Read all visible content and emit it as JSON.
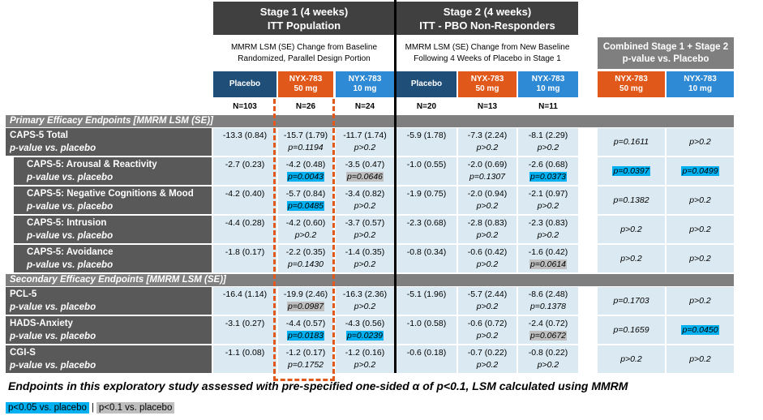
{
  "stages": [
    {
      "title": "Stage 1 (4 weeks)",
      "subtitle": "ITT Population",
      "note": [
        "MMRM LSM (SE) Change from Baseline",
        "Randomized, Parallel Design Portion"
      ],
      "arms": [
        {
          "name": "Placebo",
          "color": "#1f4e79"
        },
        {
          "name": "NYX-783",
          "dose": "50 mg",
          "color": "#e0581a"
        },
        {
          "name": "NYX-783",
          "dose": "10 mg",
          "color": "#2e8ad4"
        }
      ],
      "n": [
        "N=103",
        "N=26",
        "N=24"
      ]
    },
    {
      "title": "Stage 2 (4 weeks)",
      "subtitle": "ITT - PBO Non-Responders",
      "note": [
        "MMRM LSM (SE) Change from New Baseline",
        "Following 4 Weeks of Placebo in Stage 1"
      ],
      "arms": [
        {
          "name": "Placebo",
          "color": "#1f4e79"
        },
        {
          "name": "NYX-783",
          "dose": "50 mg",
          "color": "#e0581a"
        },
        {
          "name": "NYX-783",
          "dose": "10 mg",
          "color": "#2e8ad4"
        }
      ],
      "n": [
        "N=20",
        "N=13",
        "N=11"
      ]
    }
  ],
  "combined": {
    "title": "Combined Stage 1 + Stage 2",
    "subtitle": "p-value vs. Placebo",
    "arms": [
      {
        "name": "NYX-783",
        "dose": "50 mg",
        "color": "#e0581a"
      },
      {
        "name": "NYX-783",
        "dose": "10 mg",
        "color": "#2e8ad4"
      }
    ]
  },
  "sections": [
    {
      "title": "Primary Efficacy Endpoints [MMRM LSM (SE)]",
      "rows": [
        {
          "label": "CAPS-5 Total",
          "sub": "p-value vs. placebo",
          "indent": false,
          "cells": [
            {
              "value": "-13.3 (0.84)"
            },
            {
              "value": "-15.7 (1.79)",
              "p": "p=0.1194"
            },
            {
              "value": "-11.7 (1.74)",
              "p": "p>0.2"
            },
            {
              "value": "-5.9 (1.78)"
            },
            {
              "value": "-7.3 (2.24)",
              "p": "p>0.2"
            },
            {
              "value": "-8.1 (2.29)",
              "p": "p>0.2"
            }
          ],
          "combined": [
            {
              "p": "p=0.1611"
            },
            {
              "p": "p>0.2"
            }
          ]
        },
        {
          "label": "CAPS-5: Arousal & Reactivity",
          "sub": "p-value vs. placebo",
          "indent": true,
          "cells": [
            {
              "value": "-2.7 (0.23)"
            },
            {
              "value": "-4.2 (0.48)",
              "p": "p=0.0043",
              "hl": "#00b0f0"
            },
            {
              "value": "-3.5 (0.47)",
              "p": "p=0.0646",
              "hl": "#bfbfbf"
            },
            {
              "value": "-1.0 (0.55)"
            },
            {
              "value": "-2.0 (0.69)",
              "p": "p=0.1307"
            },
            {
              "value": "-2.6 (0.68)",
              "p": "p=0.0373",
              "hl": "#00b0f0"
            }
          ],
          "combined": [
            {
              "p": "p=0.0397",
              "hl": "#00b0f0"
            },
            {
              "p": "p=0.0499",
              "hl": "#00b0f0"
            }
          ]
        },
        {
          "label": "CAPS-5: Negative Cognitions & Mood",
          "sub": "p-value vs. placebo",
          "indent": true,
          "cells": [
            {
              "value": "-4.2 (0.40)"
            },
            {
              "value": "-5.7 (0.84)",
              "p": "p=0.0485",
              "hl": "#00b0f0"
            },
            {
              "value": "-3.4 (0.82)",
              "p": "p>0.2"
            },
            {
              "value": "-1.9 (0.75)"
            },
            {
              "value": "-2.0 (0.94)",
              "p": "p>0.2"
            },
            {
              "value": "-2.1 (0.97)",
              "p": "p>0.2"
            }
          ],
          "combined": [
            {
              "p": "p=0.1382"
            },
            {
              "p": "p>0.2"
            }
          ]
        },
        {
          "label": "CAPS-5: Intrusion",
          "sub": "p-value vs. placebo",
          "indent": true,
          "cells": [
            {
              "value": "-4.4 (0.28)"
            },
            {
              "value": "-4.2 (0.60)",
              "p": "p>0.2"
            },
            {
              "value": "-3.7 (0.57)",
              "p": "p>0.2"
            },
            {
              "value": "-2.3 (0.68)"
            },
            {
              "value": "-2.8 (0.83)",
              "p": "p>0.2"
            },
            {
              "value": "-2.3 (0.83)",
              "p": "p>0.2"
            }
          ],
          "combined": [
            {
              "p": "p>0.2"
            },
            {
              "p": "p>0.2"
            }
          ]
        },
        {
          "label": "CAPS-5: Avoidance",
          "sub": "p-value vs. placebo",
          "indent": true,
          "cells": [
            {
              "value": "-1.8 (0.17)"
            },
            {
              "value": "-2.2 (0.35)",
              "p": "p=0.1430"
            },
            {
              "value": "-1.4 (0.35)",
              "p": "p>0.2"
            },
            {
              "value": "-0.8 (0.34)"
            },
            {
              "value": "-0.6 (0.42)",
              "p": "p>0.2"
            },
            {
              "value": "-1.6 (0.42)",
              "p": "p=0.0614",
              "hl": "#bfbfbf"
            }
          ],
          "combined": [
            {
              "p": "p>0.2"
            },
            {
              "p": "p>0.2"
            }
          ]
        }
      ]
    },
    {
      "title": "Secondary Efficacy Endpoints [MMRM LSM (SE)]",
      "rows": [
        {
          "label": "PCL-5",
          "sub": "p-value vs. placebo",
          "indent": false,
          "cells": [
            {
              "value": "-16.4 (1.14)"
            },
            {
              "value": "-19.9 (2.46)",
              "p": "p=0.0987",
              "hl": "#bfbfbf"
            },
            {
              "value": "-16.3 (2.36)",
              "p": "p>0.2"
            },
            {
              "value": "-5.1 (1.96)"
            },
            {
              "value": "-5.7 (2.44)",
              "p": "p>0.2"
            },
            {
              "value": "-8.6 (2.48)",
              "p": "p=0.1378"
            }
          ],
          "combined": [
            {
              "p": "p=0.1703"
            },
            {
              "p": "p>0.2"
            }
          ]
        },
        {
          "label": "HADS-Anxiety",
          "sub": "p-value vs. placebo",
          "indent": false,
          "cells": [
            {
              "value": "-3.1 (0.27)"
            },
            {
              "value": "-4.4 (0.57)",
              "p": "p=0.0183",
              "hl": "#00b0f0"
            },
            {
              "value": "-4.3 (0.56)",
              "p": "p=0.0239",
              "hl": "#00b0f0"
            },
            {
              "value": "-1.0 (0.58)"
            },
            {
              "value": "-0.6 (0.72)",
              "p": "p>0.2"
            },
            {
              "value": "-2.4 (0.72)",
              "p": "p=0.0672",
              "hl": "#bfbfbf"
            }
          ],
          "combined": [
            {
              "p": "p=0.1659"
            },
            {
              "p": "p=0.0450",
              "hl": "#00b0f0"
            }
          ]
        },
        {
          "label": "CGI-S",
          "sub": "p-value vs. placebo",
          "indent": false,
          "cells": [
            {
              "value": "-1.1 (0.08)"
            },
            {
              "value": "-1.2 (0.17)",
              "p": "p=0.1752"
            },
            {
              "value": "-1.2 (0.16)",
              "p": "p>0.2"
            },
            {
              "value": "-0.6 (0.18)"
            },
            {
              "value": "-0.7 (0.22)",
              "p": "p>0.2"
            },
            {
              "value": "-0.8 (0.22)",
              "p": "p>0.2"
            }
          ],
          "combined": [
            {
              "p": "p>0.2"
            },
            {
              "p": "p>0.2"
            }
          ]
        }
      ]
    }
  ],
  "footnote": "Endpoints in this exploratory study assessed with pre-specified one-sided α of p<0.1, LSM calculated using MMRM",
  "legend": {
    "items": [
      {
        "label": "p<0.05 vs. placebo",
        "color": "#00b0f0"
      },
      {
        "label": "p<0.1 vs. placebo",
        "color": "#bfbfbf"
      }
    ],
    "separator": "|"
  }
}
